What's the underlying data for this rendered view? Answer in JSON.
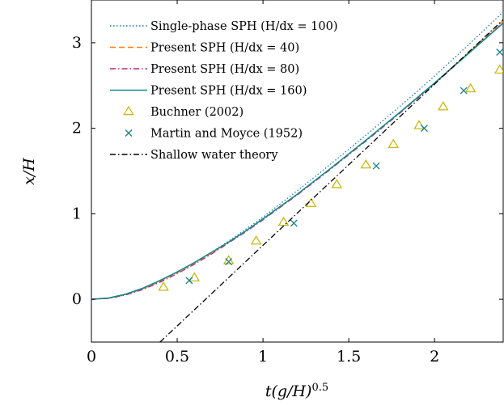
{
  "chart_data": {
    "type": "line",
    "xlabel": "t(g/H)^0.5",
    "ylabel": "x/H",
    "xlim": [
      0,
      2.4
    ],
    "ylim": [
      -0.5,
      3.5
    ],
    "xticks": [
      0,
      0.5,
      1,
      1.5,
      2
    ],
    "xtick_labels": [
      "0",
      "0.5",
      "1",
      "1.5",
      "2"
    ],
    "yticks": [
      0,
      1,
      2,
      3
    ],
    "ytick_labels": [
      "0",
      "1",
      "2",
      "3"
    ],
    "grid": false,
    "legend_position": "top-left",
    "series": [
      {
        "name": "Single-phase SPH (H/dx = 100)",
        "style": "dotted",
        "color": "#1f77b4",
        "x": [
          0,
          0.1,
          0.2,
          0.3,
          0.4,
          0.5,
          0.6,
          0.7,
          0.8,
          0.9,
          1.0,
          1.2,
          1.4,
          1.6,
          1.8,
          2.0,
          2.2,
          2.4
        ],
        "y": [
          0,
          0.015,
          0.06,
          0.13,
          0.22,
          0.32,
          0.43,
          0.55,
          0.68,
          0.82,
          0.96,
          1.27,
          1.59,
          1.92,
          2.26,
          2.61,
          2.98,
          3.36
        ]
      },
      {
        "name": "Present SPH (H/dx = 40)",
        "style": "dashed",
        "color": "#ff7f0e",
        "x": [
          0,
          0.1,
          0.2,
          0.3,
          0.4,
          0.5,
          0.6,
          0.7,
          0.8,
          0.9,
          1.0,
          1.2,
          1.4,
          1.6,
          1.8,
          2.0,
          2.2,
          2.4
        ],
        "y": [
          0,
          0.012,
          0.055,
          0.12,
          0.21,
          0.31,
          0.42,
          0.54,
          0.67,
          0.8,
          0.94,
          1.23,
          1.54,
          1.86,
          2.19,
          2.53,
          2.89,
          3.26
        ]
      },
      {
        "name": "Present SPH (H/dx = 80)",
        "style": "dashdot",
        "color": "#c0287a",
        "x": [
          0,
          0.1,
          0.2,
          0.3,
          0.4,
          0.5,
          0.6,
          0.7,
          0.8,
          0.9,
          1.0,
          1.2,
          1.4,
          1.6,
          1.8,
          2.0,
          2.2,
          2.4
        ],
        "y": [
          0,
          0.01,
          0.05,
          0.115,
          0.2,
          0.3,
          0.41,
          0.53,
          0.66,
          0.79,
          0.93,
          1.22,
          1.53,
          1.85,
          2.18,
          2.52,
          2.88,
          3.24
        ]
      },
      {
        "name": "Present SPH (H/dx = 160)",
        "style": "solid",
        "color": "#148a8a",
        "x": [
          0,
          0.1,
          0.2,
          0.3,
          0.4,
          0.5,
          0.6,
          0.7,
          0.8,
          0.9,
          1.0,
          1.2,
          1.4,
          1.6,
          1.8,
          2.0,
          2.2,
          2.4
        ],
        "y": [
          0,
          0.015,
          0.06,
          0.13,
          0.22,
          0.32,
          0.43,
          0.55,
          0.67,
          0.8,
          0.94,
          1.23,
          1.54,
          1.86,
          2.19,
          2.53,
          2.88,
          3.23
        ]
      },
      {
        "name": "Buchner (2002)",
        "style": "marker-triangle",
        "color": "#c8b400",
        "x": [
          0.42,
          0.6,
          0.8,
          0.96,
          1.12,
          1.28,
          1.43,
          1.6,
          1.76,
          1.91,
          2.05,
          2.21,
          2.38
        ],
        "y": [
          0.14,
          0.25,
          0.45,
          0.68,
          0.9,
          1.12,
          1.34,
          1.57,
          1.81,
          2.03,
          2.25,
          2.46,
          2.68
        ]
      },
      {
        "name": "Martin and Moyce (1952)",
        "style": "marker-x",
        "color": "#1a7f8e",
        "x": [
          0.57,
          0.8,
          1.18,
          1.66,
          1.94,
          2.17,
          2.38
        ],
        "y": [
          0.22,
          0.44,
          0.89,
          1.56,
          2.0,
          2.44,
          2.89
        ]
      },
      {
        "name": "Shallow water theory",
        "style": "dashdot",
        "color": "#000000",
        "x": [
          0.4,
          2.4
        ],
        "y": [
          -0.5,
          3.27
        ]
      }
    ]
  }
}
